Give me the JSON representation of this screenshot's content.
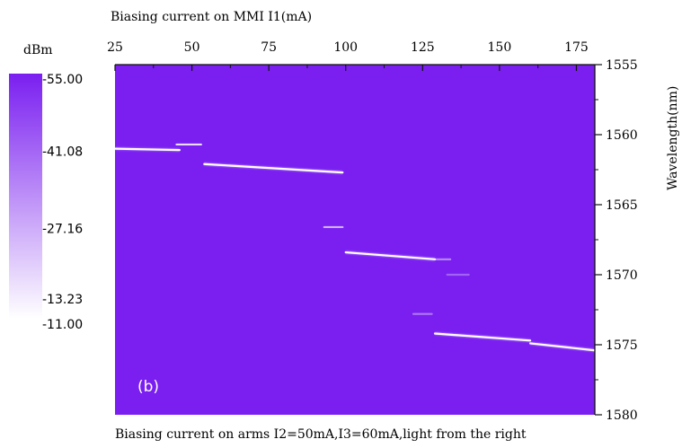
{
  "chart_data": {
    "type": "heatmap",
    "panel_label": "(b)",
    "top_axis": {
      "label": "Biasing current on MMI  I1(mA)",
      "ticks": [
        25,
        50,
        75,
        100,
        125,
        150,
        175
      ],
      "range": [
        25,
        181
      ]
    },
    "bottom_caption": "Biasing current on arms  I2=50mA,I3=60mA,light from the right",
    "right_axis": {
      "label": "Wavelength(nm)",
      "ticks": [
        1555,
        1560,
        1565,
        1570,
        1575,
        1580
      ],
      "range": [
        1555,
        1580
      ]
    },
    "colorbar": {
      "unit": "dBm",
      "tick_labels": [
        "-55.00",
        "-41.08",
        "-27.16",
        "-13.23",
        "-11.00"
      ],
      "tick_values": [
        -55.0,
        -41.08,
        -27.16,
        -13.23,
        -11.0
      ],
      "range": [
        -55.0,
        -11.0
      ]
    },
    "colors": {
      "background": "#7a1ff0",
      "peak": "#ffffff",
      "colorbar_low": "#7a1ff0",
      "colorbar_high": "#ffffff"
    },
    "series": [
      {
        "x": [
          25,
          46
        ],
        "y": [
          1561.0,
          1561.1
        ],
        "strength": 0.9
      },
      {
        "x": [
          45,
          53
        ],
        "y": [
          1560.7,
          1560.7
        ],
        "strength": 0.7
      },
      {
        "x": [
          54,
          99
        ],
        "y": [
          1562.1,
          1562.7
        ],
        "strength": 1.0
      },
      {
        "x": [
          93,
          99
        ],
        "y": [
          1566.6,
          1566.6
        ],
        "strength": 0.5
      },
      {
        "x": [
          100,
          129
        ],
        "y": [
          1568.4,
          1568.9
        ],
        "strength": 1.0
      },
      {
        "x": [
          129,
          134
        ],
        "y": [
          1568.9,
          1568.9
        ],
        "strength": 0.3
      },
      {
        "x": [
          122,
          128
        ],
        "y": [
          1572.8,
          1572.8
        ],
        "strength": 0.25
      },
      {
        "x": [
          129,
          160
        ],
        "y": [
          1574.2,
          1574.7
        ],
        "strength": 1.0
      },
      {
        "x": [
          160,
          181
        ],
        "y": [
          1574.9,
          1575.4
        ],
        "strength": 1.0
      },
      {
        "x": [
          133,
          140
        ],
        "y": [
          1570.0,
          1570.0
        ],
        "strength": 0.15
      }
    ]
  }
}
